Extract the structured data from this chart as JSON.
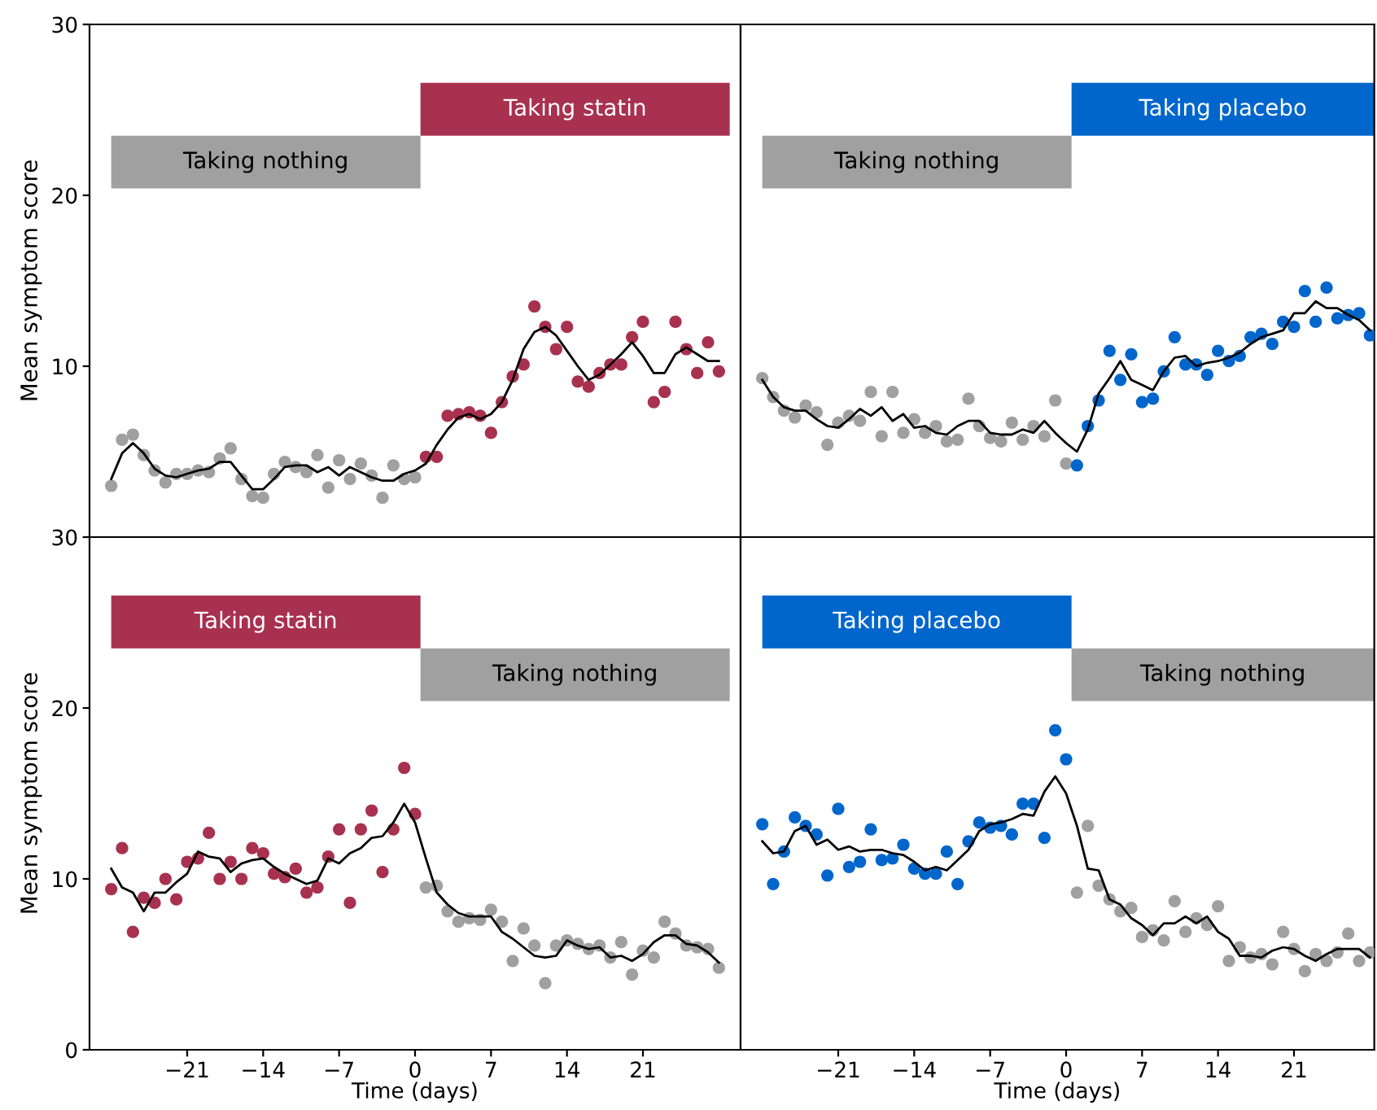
{
  "chart_data": [
    {
      "type": "scatter",
      "ylabel": "Mean symptom score",
      "xlim": [
        -30,
        30
      ],
      "ylim": [
        0,
        30
      ],
      "yticks": [
        10,
        20,
        30
      ],
      "tick_labels": "y",
      "bands": [
        {
          "axis": "x",
          "from": -28,
          "to": 0.5,
          "label": "Taking nothing",
          "color": "#a0a0a0"
        },
        {
          "axis": "x",
          "from": 0.5,
          "to": 29,
          "label": "Taking statin",
          "color": "#a8314f"
        }
      ],
      "series": [
        {
          "marker": "circle",
          "color": "#a0a0a0",
          "x": [
            -28,
            -27,
            -26,
            -25,
            -24,
            -23,
            -22,
            -21,
            -20,
            -19,
            -18,
            -17,
            -16,
            -15,
            -14,
            -13,
            -12,
            -11,
            -10,
            -9,
            -8,
            -7,
            -6,
            -5,
            -4,
            -3,
            -2,
            -1,
            0
          ],
          "values": [
            3.0,
            5.7,
            6.0,
            4.8,
            3.9,
            3.2,
            3.7,
            3.7,
            3.9,
            3.8,
            4.6,
            5.2,
            3.4,
            2.4,
            2.3,
            3.7,
            4.4,
            4.1,
            3.8,
            4.8,
            2.9,
            4.5,
            3.4,
            4.3,
            3.6,
            2.3,
            4.2,
            3.4,
            3.5
          ]
        },
        {
          "marker": "circle",
          "color": "#a8314f",
          "x": [
            1,
            2,
            3,
            4,
            5,
            6,
            7,
            8,
            9,
            10,
            11,
            12,
            13,
            14,
            15,
            16,
            17,
            18,
            19,
            20,
            21,
            22,
            23,
            24,
            25,
            26,
            27,
            28
          ],
          "values": [
            4.7,
            4.7,
            7.1,
            7.2,
            7.3,
            7.1,
            6.1,
            7.9,
            9.4,
            10.1,
            13.5,
            12.3,
            11.0,
            12.3,
            9.1,
            8.8,
            9.6,
            10.1,
            10.1,
            11.7,
            12.6,
            7.9,
            8.5,
            12.6,
            11.0,
            9.6,
            11.4,
            9.7
          ]
        },
        {
          "type": "line",
          "color": "#000000",
          "x": [
            -28,
            -27,
            -26,
            -25,
            -24,
            -23,
            -22,
            -21,
            -20,
            -19,
            -18,
            -17,
            -16,
            -15,
            -14,
            -13,
            -12,
            -11,
            -10,
            -9,
            -8,
            -7,
            -6,
            -5,
            -4,
            -3,
            -2,
            -1,
            0,
            1,
            2,
            3,
            4,
            5,
            6,
            7,
            8,
            9,
            10,
            11,
            12,
            13,
            14,
            15,
            16,
            17,
            18,
            19,
            20,
            21,
            22,
            23,
            24,
            25,
            26,
            27,
            28
          ],
          "values": [
            3.4,
            4.9,
            5.5,
            4.9,
            4.0,
            3.6,
            3.5,
            3.7,
            3.9,
            4.0,
            4.4,
            4.4,
            3.6,
            2.8,
            2.8,
            3.4,
            4.1,
            4.2,
            4.2,
            3.8,
            4.1,
            3.6,
            4.1,
            3.8,
            3.5,
            3.3,
            3.3,
            3.7,
            3.9,
            4.3,
            5.4,
            6.3,
            7.0,
            7.2,
            6.9,
            7.2,
            7.9,
            9.2,
            11.0,
            12.0,
            12.3,
            11.8,
            10.9,
            10.0,
            9.2,
            9.5,
            10.1,
            10.7,
            11.4,
            10.6,
            9.6,
            9.6,
            10.7,
            11.1,
            10.7,
            10.3,
            10.3
          ]
        }
      ]
    },
    {
      "type": "scatter",
      "xlim": [
        -30,
        28.4
      ],
      "ylim": [
        0,
        30
      ],
      "tick_labels": false,
      "bands": [
        {
          "axis": "x",
          "from": -28,
          "to": 0.5,
          "label": "Taking nothing",
          "color": "#a0a0a0"
        },
        {
          "axis": "x",
          "from": 0.5,
          "to": 28.4,
          "label": "Taking placebo",
          "color": "#0066cc"
        }
      ],
      "series": [
        {
          "marker": "circle",
          "color": "#a0a0a0",
          "x": [
            -28,
            -27,
            -26,
            -25,
            -24,
            -23,
            -22,
            -21,
            -20,
            -19,
            -18,
            -17,
            -16,
            -15,
            -14,
            -13,
            -12,
            -11,
            -10,
            -9,
            -8,
            -7,
            -6,
            -5,
            -4,
            -3,
            -2,
            -1,
            0
          ],
          "values": [
            9.3,
            8.2,
            7.4,
            7.0,
            7.7,
            7.3,
            5.4,
            6.7,
            7.1,
            6.8,
            8.5,
            5.9,
            8.5,
            6.1,
            6.9,
            6.1,
            6.5,
            5.6,
            5.7,
            8.1,
            6.5,
            5.8,
            5.6,
            6.7,
            5.7,
            6.5,
            5.9,
            8.0,
            4.3
          ]
        },
        {
          "marker": "circle",
          "color": "#0066cc",
          "x": [
            1,
            2,
            3,
            4,
            5,
            6,
            7,
            8,
            9,
            10,
            11,
            12,
            13,
            14,
            15,
            16,
            17,
            18,
            19,
            20,
            21,
            22,
            23,
            24,
            25,
            26,
            27,
            28
          ],
          "values": [
            4.2,
            6.5,
            8.0,
            10.9,
            9.2,
            10.7,
            7.9,
            8.1,
            9.7,
            11.7,
            10.1,
            10.1,
            9.5,
            10.9,
            10.3,
            10.6,
            11.7,
            11.9,
            11.3,
            12.6,
            12.3,
            14.4,
            12.6,
            14.6,
            12.8,
            13.0,
            13.1,
            11.8
          ]
        },
        {
          "type": "line",
          "color": "#000000",
          "x": [
            -28,
            -27,
            -26,
            -25,
            -24,
            -23,
            -22,
            -21,
            -20,
            -19,
            -18,
            -17,
            -16,
            -15,
            -14,
            -13,
            -12,
            -11,
            -10,
            -9,
            -8,
            -7,
            -6,
            -5,
            -4,
            -3,
            -2,
            -1,
            0,
            1,
            2,
            3,
            4,
            5,
            6,
            7,
            8,
            9,
            10,
            11,
            12,
            13,
            14,
            15,
            16,
            17,
            18,
            19,
            20,
            21,
            22,
            23,
            24,
            25,
            26,
            27,
            28
          ],
          "values": [
            9.2,
            8.2,
            7.6,
            7.4,
            7.4,
            6.9,
            6.5,
            6.4,
            6.9,
            7.5,
            7.1,
            7.6,
            6.8,
            7.2,
            6.4,
            6.5,
            6.1,
            6.0,
            6.5,
            6.8,
            6.8,
            6.1,
            6.0,
            6.0,
            6.3,
            6.1,
            6.8,
            6.1,
            5.5,
            5.0,
            6.3,
            8.4,
            9.3,
            10.3,
            9.2,
            8.9,
            8.6,
            9.7,
            10.5,
            10.6,
            10.0,
            10.2,
            10.3,
            10.5,
            10.8,
            11.3,
            11.7,
            11.9,
            12.1,
            13.1,
            13.1,
            13.8,
            13.4,
            13.4,
            13.0,
            12.7,
            12.1
          ]
        }
      ]
    },
    {
      "type": "scatter",
      "xlabel": "Time (days)",
      "ylabel": "Mean symptom score",
      "xlim": [
        -30,
        30
      ],
      "ylim": [
        0,
        30
      ],
      "xticks": [
        {
          "value": -21,
          "label": "−21"
        },
        {
          "value": -14,
          "label": "−14"
        },
        {
          "value": -7,
          "label": "−7"
        },
        0,
        7,
        14,
        21
      ],
      "yticks": [
        0,
        10,
        20,
        30
      ],
      "bands": [
        {
          "axis": "x",
          "from": 0.5,
          "to": 29,
          "label": "Taking nothing",
          "color": "#a0a0a0"
        },
        {
          "axis": "x",
          "from": -28,
          "to": 0.5,
          "label": "Taking statin",
          "color": "#a8314f"
        }
      ],
      "series": [
        {
          "marker": "circle",
          "color": "#a8314f",
          "x": [
            -28,
            -27,
            -26,
            -25,
            -24,
            -23,
            -22,
            -21,
            -20,
            -19,
            -18,
            -17,
            -16,
            -15,
            -14,
            -13,
            -12,
            -11,
            -10,
            -9,
            -8,
            -7,
            -6,
            -5,
            -4,
            -3,
            -2,
            -1,
            0
          ],
          "values": [
            9.4,
            11.8,
            6.9,
            8.9,
            8.6,
            10.0,
            8.8,
            11.0,
            11.2,
            12.7,
            10.0,
            11.0,
            10.0,
            11.8,
            11.5,
            10.3,
            10.1,
            10.6,
            9.2,
            9.5,
            11.3,
            12.9,
            8.6,
            12.9,
            14.0,
            10.4,
            12.9,
            16.5,
            13.8
          ]
        },
        {
          "marker": "circle",
          "color": "#a0a0a0",
          "x": [
            1,
            2,
            3,
            4,
            5,
            6,
            7,
            8,
            9,
            10,
            11,
            12,
            13,
            14,
            15,
            16,
            17,
            18,
            19,
            20,
            21,
            22,
            23,
            24,
            25,
            26,
            27,
            28
          ],
          "values": [
            9.5,
            9.6,
            8.1,
            7.5,
            7.7,
            7.6,
            8.2,
            7.5,
            5.2,
            7.1,
            6.1,
            3.9,
            6.1,
            6.4,
            6.2,
            5.9,
            6.1,
            5.4,
            6.3,
            4.4,
            5.8,
            5.4,
            7.5,
            6.8,
            6.1,
            6.0,
            5.9,
            4.8
          ]
        },
        {
          "type": "line",
          "color": "#000000",
          "x": [
            -28,
            -27,
            -26,
            -25,
            -24,
            -23,
            -22,
            -21,
            -20,
            -19,
            -18,
            -17,
            -16,
            -15,
            -14,
            -13,
            -12,
            -11,
            -10,
            -9,
            -8,
            -7,
            -6,
            -5,
            -4,
            -3,
            -2,
            -1,
            0,
            1,
            2,
            3,
            4,
            5,
            6,
            7,
            8,
            9,
            10,
            11,
            12,
            13,
            14,
            15,
            16,
            17,
            18,
            19,
            20,
            21,
            22,
            23,
            24,
            25,
            26,
            27,
            28
          ],
          "values": [
            10.6,
            9.5,
            9.2,
            8.1,
            9.2,
            9.2,
            9.8,
            10.3,
            11.6,
            11.3,
            11.2,
            10.4,
            10.9,
            11.1,
            11.2,
            10.7,
            10.3,
            10.0,
            9.7,
            9.9,
            11.2,
            10.9,
            11.5,
            11.8,
            12.4,
            12.5,
            13.3,
            14.4,
            13.3,
            11.2,
            9.2,
            8.5,
            8.0,
            7.8,
            7.8,
            7.8,
            6.9,
            6.5,
            6.0,
            5.5,
            5.4,
            5.5,
            6.4,
            6.1,
            5.9,
            6.0,
            5.4,
            5.5,
            5.2,
            5.6,
            6.3,
            6.7,
            6.7,
            6.2,
            6.1,
            5.7,
            5.1
          ]
        }
      ]
    },
    {
      "type": "scatter",
      "xlabel": "Time (days)",
      "xlim": [
        -30,
        28.4
      ],
      "ylim": [
        0,
        30
      ],
      "xticks": [
        {
          "value": -21,
          "label": "−21"
        },
        {
          "value": -14,
          "label": "−14"
        },
        {
          "value": -7,
          "label": "−7"
        },
        0,
        7,
        14,
        21
      ],
      "tick_labels": "x",
      "bands": [
        {
          "axis": "x",
          "from": 0.5,
          "to": 28.4,
          "label": "Taking nothing",
          "color": "#a0a0a0"
        },
        {
          "axis": "x",
          "from": -28,
          "to": 0.5,
          "label": "Taking placebo",
          "color": "#0066cc"
        }
      ],
      "series": [
        {
          "marker": "circle",
          "color": "#0066cc",
          "x": [
            -28,
            -27,
            -26,
            -25,
            -24,
            -23,
            -22,
            -21,
            -20,
            -19,
            -18,
            -17,
            -16,
            -15,
            -14,
            -13,
            -12,
            -11,
            -10,
            -9,
            -8,
            -7,
            -6,
            -5,
            -4,
            -3,
            -2,
            -1,
            0
          ],
          "values": [
            13.2,
            9.7,
            11.6,
            13.6,
            13.1,
            12.6,
            10.2,
            14.1,
            10.7,
            11.0,
            12.9,
            11.1,
            11.2,
            12.0,
            10.6,
            10.3,
            10.3,
            11.6,
            9.7,
            12.2,
            13.3,
            13.0,
            13.1,
            12.6,
            14.4,
            14.4,
            12.4,
            18.7,
            17.0
          ]
        },
        {
          "marker": "circle",
          "color": "#a0a0a0",
          "x": [
            1,
            2,
            3,
            4,
            5,
            6,
            7,
            8,
            9,
            10,
            11,
            12,
            13,
            14,
            15,
            16,
            17,
            18,
            19,
            20,
            21,
            22,
            23,
            24,
            25,
            26,
            27,
            28
          ],
          "values": [
            9.2,
            13.1,
            9.6,
            8.8,
            8.1,
            8.3,
            6.6,
            7.0,
            6.4,
            8.7,
            6.9,
            7.7,
            7.3,
            8.4,
            5.2,
            6.0,
            5.4,
            5.6,
            5.0,
            6.9,
            5.9,
            4.6,
            5.6,
            5.2,
            5.7,
            6.8,
            5.2,
            5.7
          ]
        },
        {
          "type": "line",
          "color": "#000000",
          "x": [
            -28,
            -27,
            -26,
            -25,
            -24,
            -23,
            -22,
            -21,
            -20,
            -19,
            -18,
            -17,
            -16,
            -15,
            -14,
            -13,
            -12,
            -11,
            -10,
            -9,
            -8,
            -7,
            -6,
            -5,
            -4,
            -3,
            -2,
            -1,
            0,
            1,
            2,
            3,
            4,
            5,
            6,
            7,
            8,
            9,
            10,
            11,
            12,
            13,
            14,
            15,
            16,
            17,
            18,
            19,
            20,
            21,
            22,
            23,
            24,
            25,
            26,
            27,
            28
          ],
          "values": [
            12.2,
            11.5,
            11.6,
            12.8,
            13.1,
            12.0,
            12.3,
            11.7,
            11.9,
            11.6,
            11.7,
            11.7,
            11.5,
            11.4,
            11.0,
            10.5,
            10.7,
            10.5,
            11.1,
            11.7,
            12.8,
            13.2,
            13.3,
            13.5,
            13.8,
            13.7,
            15.1,
            16.0,
            15.0,
            13.1,
            10.6,
            10.5,
            8.8,
            8.5,
            7.7,
            7.3,
            6.7,
            7.4,
            7.4,
            7.8,
            7.4,
            7.8,
            6.9,
            6.5,
            5.5,
            5.5,
            5.4,
            5.8,
            6.0,
            5.9,
            5.5,
            5.2,
            5.6,
            5.9,
            5.9,
            5.9,
            5.4
          ]
        }
      ]
    }
  ]
}
